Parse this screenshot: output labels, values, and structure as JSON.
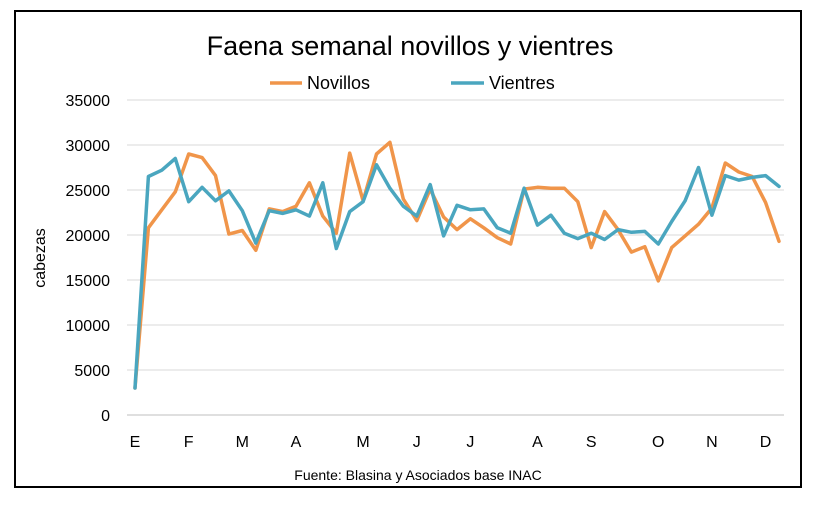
{
  "chart_data": {
    "type": "line",
    "title": "Faena semanal novillos y vientres",
    "ylabel": "cabezas",
    "xlabel": "",
    "source": "Fuente: Blasina y Asociados base INAC",
    "ylim": [
      0,
      35000
    ],
    "yticks": [
      0,
      5000,
      10000,
      15000,
      20000,
      25000,
      30000,
      35000
    ],
    "month_labels": [
      "E",
      "F",
      "M",
      "A",
      "M",
      "J",
      "J",
      "A",
      "S",
      "O",
      "N",
      "D"
    ],
    "month_label_weeks": [
      1,
      5,
      9,
      13,
      18,
      22,
      26,
      31,
      35,
      40,
      44,
      48
    ],
    "weeks": 49,
    "grid": true,
    "legend_position": "top",
    "series": [
      {
        "name": "Novillos",
        "color": "#F0954A",
        "values": [
          3000,
          20800,
          22800,
          24800,
          29000,
          28600,
          26600,
          20100,
          20500,
          18300,
          22900,
          22600,
          23200,
          25800,
          22100,
          20200,
          29100,
          23800,
          29000,
          30300,
          24000,
          21600,
          25100,
          22000,
          20600,
          21800,
          20800,
          19700,
          19000,
          25100,
          25300,
          25200,
          25200,
          23700,
          18600,
          22600,
          20600,
          18100,
          18700,
          14900,
          18600,
          19900,
          21200,
          23000,
          28000,
          27000,
          26500,
          23600,
          19300
        ]
      },
      {
        "name": "Vientres",
        "color": "#4AA6BF",
        "values": [
          3000,
          26500,
          27200,
          28500,
          23700,
          25300,
          23800,
          24900,
          22700,
          19100,
          22700,
          22400,
          22800,
          22100,
          25800,
          18500,
          22600,
          23700,
          27800,
          25200,
          23200,
          22100,
          25600,
          19900,
          23300,
          22800,
          22900,
          20800,
          20200,
          25200,
          21100,
          22200,
          20200,
          19600,
          20200,
          19500,
          20600,
          20300,
          20400,
          19000,
          21500,
          23800,
          27500,
          22200,
          26600,
          26100,
          26400,
          26600,
          25400
        ]
      }
    ]
  }
}
